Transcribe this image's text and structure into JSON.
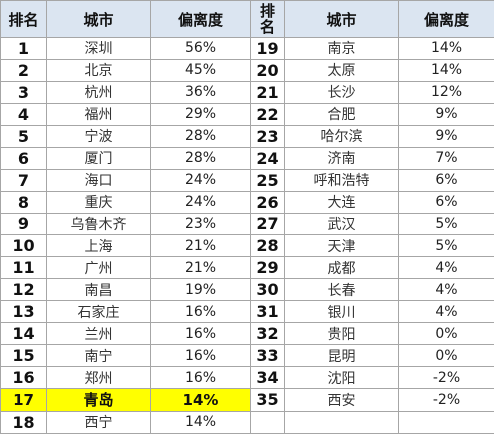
{
  "headers": {
    "rank": "排名",
    "city": "城市",
    "deviation": "偏离度",
    "rank2": "排名"
  },
  "left_rows": [
    {
      "rank": "1",
      "city": "深圳",
      "deviation": "56%"
    },
    {
      "rank": "2",
      "city": "北京",
      "deviation": "45%"
    },
    {
      "rank": "3",
      "city": "杭州",
      "deviation": "36%"
    },
    {
      "rank": "4",
      "city": "福州",
      "deviation": "29%"
    },
    {
      "rank": "5",
      "city": "宁波",
      "deviation": "28%"
    },
    {
      "rank": "6",
      "city": "厦门",
      "deviation": "28%"
    },
    {
      "rank": "7",
      "city": "海口",
      "deviation": "24%"
    },
    {
      "rank": "8",
      "city": "重庆",
      "deviation": "24%"
    },
    {
      "rank": "9",
      "city": "乌鲁木齐",
      "deviation": "23%"
    },
    {
      "rank": "10",
      "city": "上海",
      "deviation": "21%"
    },
    {
      "rank": "11",
      "city": "广州",
      "deviation": "21%"
    },
    {
      "rank": "12",
      "city": "南昌",
      "deviation": "19%"
    },
    {
      "rank": "13",
      "city": "石家庄",
      "deviation": "16%"
    },
    {
      "rank": "14",
      "city": "兰州",
      "deviation": "16%"
    },
    {
      "rank": "15",
      "city": "南宁",
      "deviation": "16%"
    },
    {
      "rank": "16",
      "city": "郑州",
      "deviation": "16%"
    },
    {
      "rank": "17",
      "city": "青岛",
      "deviation": "14%"
    },
    {
      "rank": "18",
      "city": "西宁",
      "deviation": "14%"
    }
  ],
  "right_rows": [
    {
      "rank": "19",
      "city": "南京",
      "deviation": "14%"
    },
    {
      "rank": "20",
      "city": "太原",
      "deviation": "14%"
    },
    {
      "rank": "21",
      "city": "长沙",
      "deviation": "12%"
    },
    {
      "rank": "22",
      "city": "合肥",
      "deviation": "9%"
    },
    {
      "rank": "23",
      "city": "哈尔滨",
      "deviation": "9%"
    },
    {
      "rank": "24",
      "city": "济南",
      "deviation": "7%"
    },
    {
      "rank": "25",
      "city": "呼和浩特",
      "deviation": "6%"
    },
    {
      "rank": "26",
      "city": "大连",
      "deviation": "6%"
    },
    {
      "rank": "27",
      "city": "武汉",
      "deviation": "5%"
    },
    {
      "rank": "28",
      "city": "天津",
      "deviation": "5%"
    },
    {
      "rank": "29",
      "city": "成都",
      "deviation": "4%"
    },
    {
      "rank": "30",
      "city": "长春",
      "deviation": "4%"
    },
    {
      "rank": "31",
      "city": "银川",
      "deviation": "4%"
    },
    {
      "rank": "32",
      "city": "贵阳",
      "deviation": "0%"
    },
    {
      "rank": "33",
      "city": "昆明",
      "deviation": "0%"
    },
    {
      "rank": "34",
      "city": "沈阳",
      "deviation": "-2%"
    },
    {
      "rank": "35",
      "city": "西安",
      "deviation": "-2%"
    }
  ],
  "highlight_rank": "17",
  "highlight_color": "#ffff00",
  "header_color": "#dbe5f1"
}
